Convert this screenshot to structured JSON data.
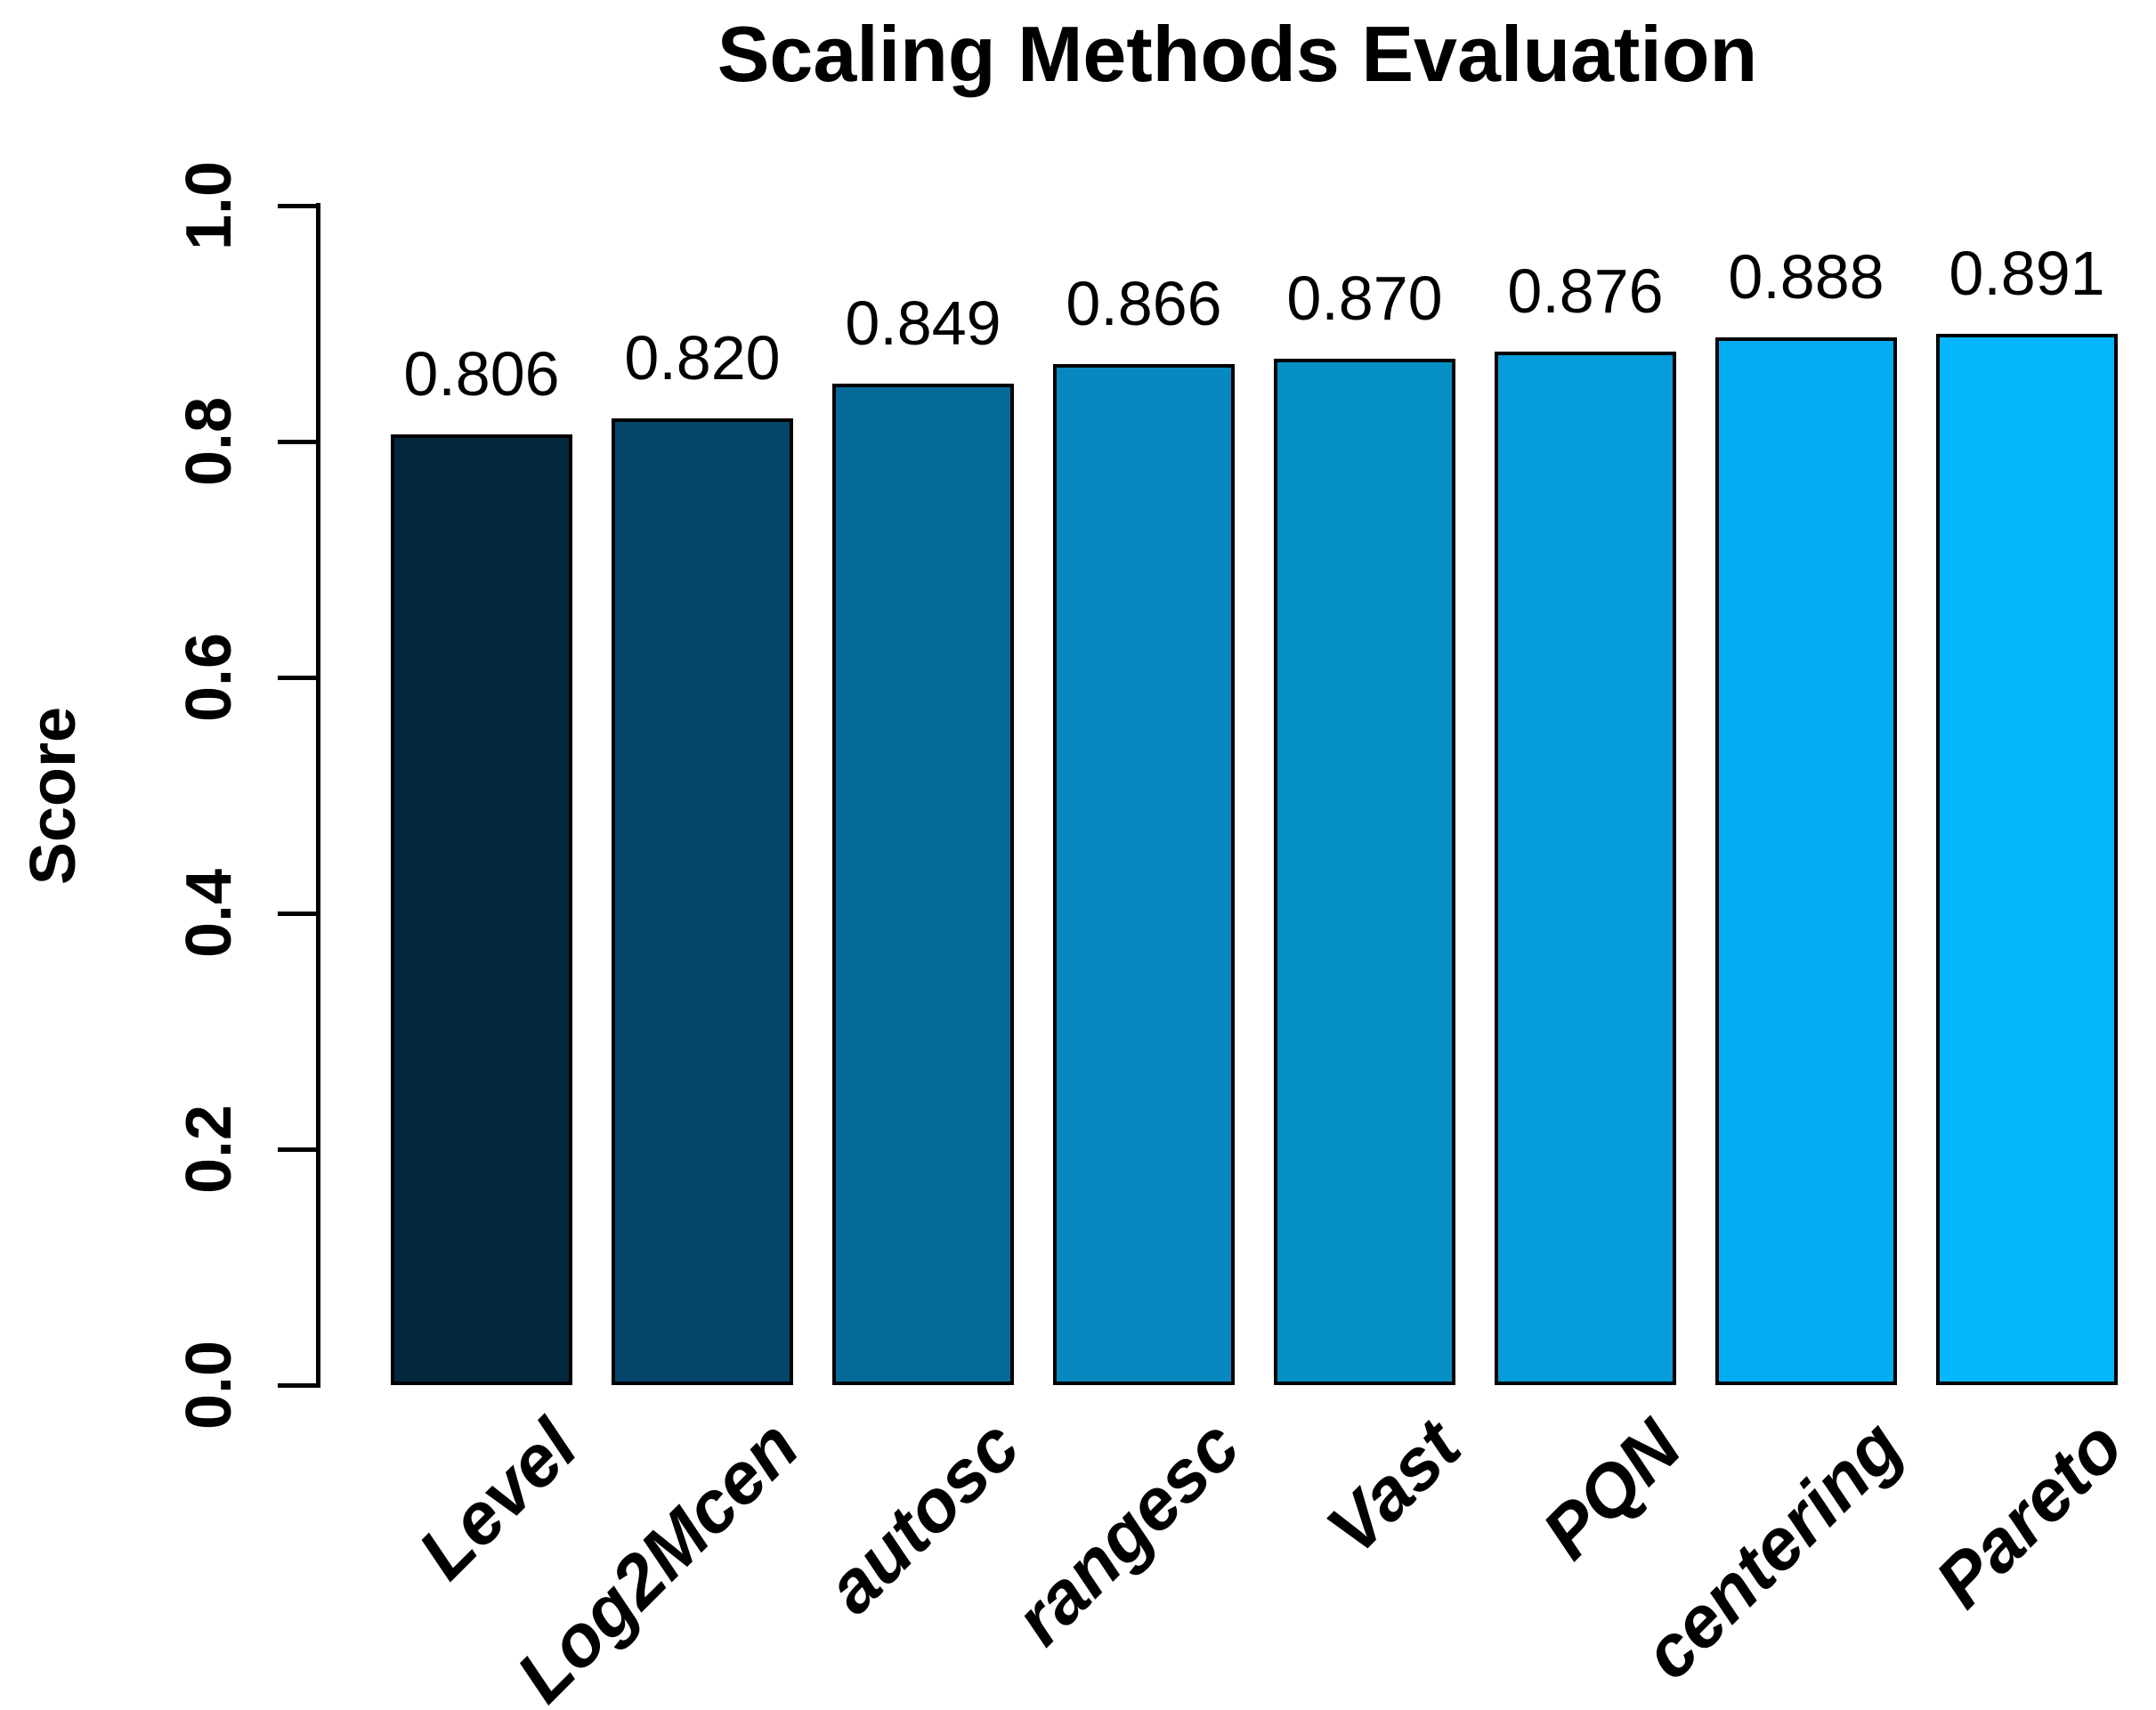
{
  "title": "Scaling Methods Evaluation",
  "chart_data": {
    "type": "bar",
    "title": "Scaling Methods Evaluation",
    "xlabel": "",
    "ylabel": "Score",
    "categories": [
      "Level",
      "Log2Mcen",
      "autosc",
      "rangesc",
      "Vast",
      "PQN",
      "centering",
      "Pareto"
    ],
    "values": [
      0.806,
      0.82,
      0.849,
      0.866,
      0.87,
      0.876,
      0.888,
      0.891
    ],
    "value_labels": [
      "0.806",
      "0.820",
      "0.849",
      "0.866",
      "0.870",
      "0.876",
      "0.888",
      "0.891"
    ],
    "bar_colors": [
      "#03283E",
      "#05456A",
      "#066A98",
      "#0789BF",
      "#058FC5",
      "#059CD9",
      "#03ADF2",
      "#06B6FD"
    ],
    "bar_border_color": "#000000",
    "yticks": [
      "0.0",
      "0.2",
      "0.4",
      "0.6",
      "0.8",
      "1.0"
    ],
    "ylim": [
      0.0,
      1.0
    ],
    "grid": false,
    "legend": null,
    "background": "#FFFFFF",
    "x_label_style": "bold-italic-rotated-45",
    "y_tick_style": "bold-rotated-90"
  }
}
